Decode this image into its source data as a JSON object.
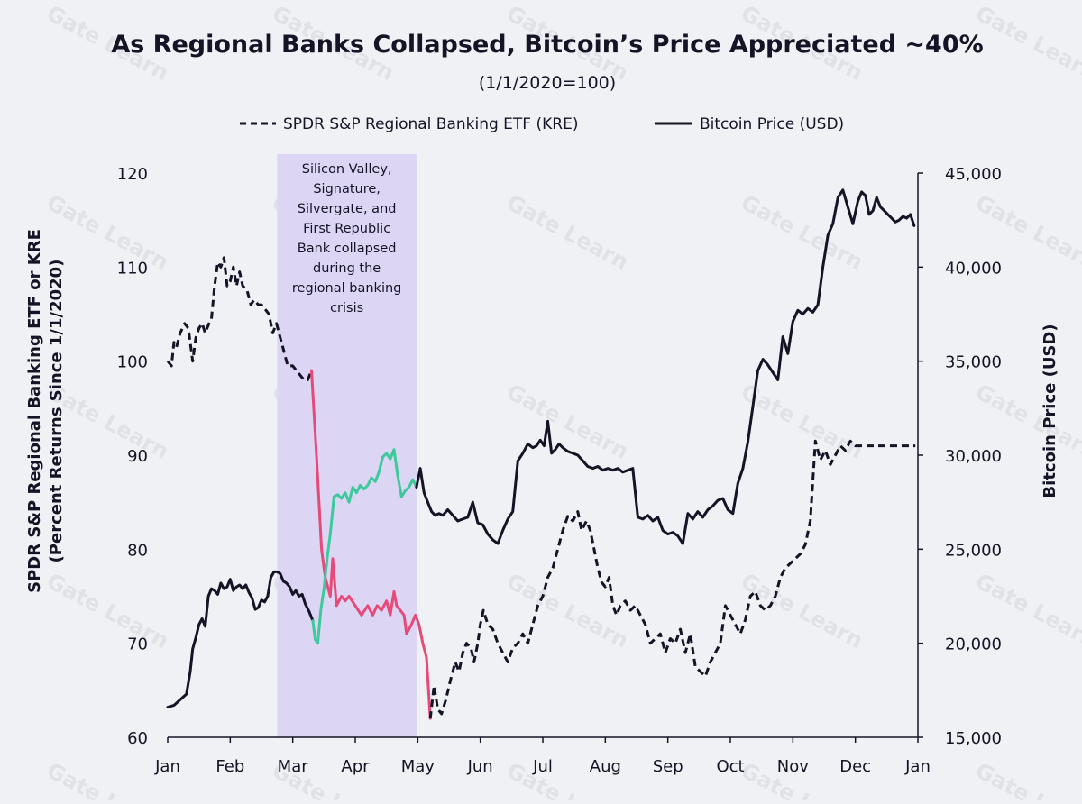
{
  "chart_data": {
    "type": "line",
    "title": "As Regional Banks Collapsed, Bitcoin’s Price Appreciated ~40%",
    "subtitle": "(1/1/2020=100)",
    "watermark": "Gate Learn",
    "legend": [
      {
        "label": "SPDR S&P Regional Banking ETF (KRE)",
        "style": "dashed"
      },
      {
        "label": "Bitcoin Price (USD)",
        "style": "solid"
      }
    ],
    "x_ticks": [
      "Jan",
      "Feb",
      "Mar",
      "Apr",
      "May",
      "Jun",
      "Jul",
      "Aug",
      "Sep",
      "Oct",
      "Nov",
      "Dec",
      "Jan"
    ],
    "y_left": {
      "label_line1": "SPDR S&P Regional Banking ETF or KRE",
      "label_line2": "(Percent Returns Since 1/1/2020)",
      "ticks": [
        "60",
        "70",
        "80",
        "90",
        "100",
        "110",
        "120"
      ],
      "range": [
        60,
        120
      ]
    },
    "y_right": {
      "label": "Bitcoin Price (USD)",
      "ticks": [
        "15,000",
        "20,000",
        "25,000",
        "30,000",
        "35,000",
        "40,000",
        "45,000"
      ],
      "range": [
        15000,
        45000
      ]
    },
    "x_range": [
      0,
      12
    ],
    "highlight": {
      "x_start": 1.75,
      "x_end": 3.98,
      "color": "#dcd6f4",
      "annotation": [
        "Silicon Valley,",
        "Signature,",
        "Silvergate, and",
        "First Republic",
        "Bank collapsed",
        "during the",
        "regional banking",
        "crisis"
      ]
    },
    "series": [
      {
        "name": "SPDR S&P Regional Banking ETF (KRE)",
        "axis": "left",
        "style": "dashed",
        "color": "#141426",
        "x": [
          0.0,
          0.06,
          0.1,
          0.14,
          0.2,
          0.27,
          0.33,
          0.4,
          0.45,
          0.5,
          0.55,
          0.6,
          0.66,
          0.7,
          0.75,
          0.8,
          0.85,
          0.9,
          0.95,
          1.0,
          1.05,
          1.1,
          1.15,
          1.2,
          1.27,
          1.33,
          1.38,
          1.45,
          1.5,
          1.56,
          1.62,
          1.68,
          1.74,
          1.8,
          1.86,
          1.92,
          2.0,
          2.06,
          2.12,
          2.18,
          2.24,
          2.3
        ],
        "values": [
          100,
          99.5,
          102,
          101.5,
          103,
          104,
          103.5,
          100,
          102.5,
          103.5,
          104,
          103,
          104,
          104.5,
          108,
          110.5,
          110,
          111,
          108,
          108.5,
          110,
          108,
          109.5,
          108,
          107.5,
          106,
          106.5,
          106,
          106,
          105.5,
          105,
          103,
          104,
          102.5,
          101,
          99.5,
          99.5,
          99,
          98.5,
          98,
          98,
          99
        ]
      },
      {
        "name": "SPDR S&P Regional Banking ETF (KRE)",
        "axis": "left",
        "style": "solid",
        "color": "#e64a78",
        "x": [
          2.3,
          2.38,
          2.46,
          2.52,
          2.6,
          2.64,
          2.7,
          2.78,
          2.84,
          2.9,
          3.0,
          3.1,
          3.2,
          3.28,
          3.35,
          3.42,
          3.5,
          3.56,
          3.62,
          3.66,
          3.72,
          3.78,
          3.82,
          3.9,
          3.96,
          4.02,
          4.08,
          4.14,
          4.2
        ],
        "values": [
          99,
          90,
          80,
          77,
          75,
          79,
          74,
          75,
          74.5,
          75,
          74,
          73,
          74,
          73,
          74,
          73.5,
          74.5,
          73,
          75.5,
          74,
          73.5,
          73,
          71,
          72,
          73,
          72,
          70,
          68.5,
          62
        ]
      },
      {
        "name": "SPDR S&P Regional Banking ETF (KRE)",
        "axis": "left",
        "style": "dashed",
        "color": "#141426",
        "x": [
          4.2,
          4.26,
          4.32,
          4.38,
          4.45,
          4.52,
          4.6,
          4.66,
          4.72,
          4.78,
          4.85,
          4.9,
          4.96,
          5.0,
          5.05,
          5.12,
          5.2,
          5.28,
          5.36,
          5.44,
          5.52,
          5.6,
          5.68,
          5.76,
          5.84,
          5.92,
          6.0,
          6.08,
          6.16,
          6.24,
          6.32,
          6.4,
          6.48,
          6.56,
          6.62,
          6.7,
          6.76,
          6.82,
          6.88,
          6.94,
          7.0,
          7.06,
          7.12,
          7.18,
          7.24,
          7.32,
          7.4,
          7.48,
          7.56,
          7.64,
          7.72,
          7.8,
          7.88,
          7.96,
          8.04,
          8.12,
          8.2,
          8.28,
          8.36,
          8.44,
          8.52,
          8.6,
          8.68,
          8.76,
          8.84,
          8.92,
          9.0,
          9.08,
          9.16,
          9.24,
          9.32,
          9.4,
          9.48,
          9.56,
          9.64,
          9.72,
          9.8,
          9.88,
          9.96,
          10.04,
          10.12,
          10.2,
          10.28,
          10.36,
          10.44,
          10.52,
          10.6,
          10.68,
          10.76,
          10.84,
          10.92,
          11.0,
          11.08,
          11.16,
          11.24,
          11.32,
          11.4,
          11.48,
          11.56,
          11.64,
          11.72,
          11.8,
          11.88,
          11.96
        ],
        "values": [
          62,
          65.5,
          63,
          62.5,
          64,
          66,
          68,
          67,
          69,
          70,
          69.5,
          68,
          70,
          72,
          73.5,
          72,
          71.5,
          70,
          69,
          68,
          69.5,
          70,
          71,
          70,
          72,
          74,
          75,
          77,
          78,
          80,
          82,
          83.5,
          83,
          84,
          82,
          83,
          82,
          80,
          78,
          76.5,
          76,
          77,
          74,
          73,
          74,
          74.5,
          73.5,
          74,
          73,
          72,
          70,
          70.5,
          71,
          69,
          70.5,
          70,
          71.5,
          69,
          71,
          67.5,
          67,
          66.5,
          68,
          69,
          70,
          74,
          73,
          72,
          71,
          72.5,
          75,
          75.5,
          74,
          73.5,
          74,
          75,
          77,
          78,
          78.5,
          79,
          79.5,
          80.5,
          83,
          91.5,
          89.5,
          90.5,
          89,
          90,
          91,
          90.5,
          91.5,
          91,
          91,
          91,
          91,
          91,
          91,
          91,
          91,
          91,
          91,
          91,
          91,
          91
        ]
      },
      {
        "name": "Bitcoin Price (USD)",
        "axis": "right",
        "style": "solid",
        "color": "#141426",
        "x": [
          0.0,
          0.1,
          0.2,
          0.3,
          0.36,
          0.4,
          0.45,
          0.5,
          0.55,
          0.6,
          0.65,
          0.7,
          0.75,
          0.8,
          0.85,
          0.9,
          0.95,
          1.0,
          1.05,
          1.1,
          1.15,
          1.2,
          1.25,
          1.3,
          1.35,
          1.4,
          1.45,
          1.5,
          1.55,
          1.6,
          1.65,
          1.7,
          1.75,
          1.8,
          1.85,
          1.9,
          1.95,
          2.0,
          2.05,
          2.1,
          2.15,
          2.2,
          2.26,
          2.32
        ],
        "values": [
          16600,
          16700,
          17000,
          17300,
          18500,
          19700,
          20300,
          21000,
          21300,
          20900,
          22500,
          22900,
          22800,
          22600,
          23200,
          22900,
          23000,
          23400,
          22800,
          23000,
          23100,
          22900,
          23100,
          22700,
          22400,
          21800,
          21900,
          22300,
          22200,
          22500,
          23500,
          23800,
          23800,
          23700,
          23300,
          23200,
          23000,
          22600,
          22800,
          22500,
          22600,
          22100,
          21700,
          21200
        ]
      },
      {
        "name": "Bitcoin Price (USD)",
        "axis": "right",
        "style": "solid",
        "color": "#3dc99b",
        "x": [
          2.32,
          2.36,
          2.4,
          2.45,
          2.5,
          2.55,
          2.6,
          2.66,
          2.72,
          2.78,
          2.84,
          2.9,
          2.96,
          3.02,
          3.08,
          3.14,
          3.2,
          3.26,
          3.32,
          3.38,
          3.44,
          3.5,
          3.56,
          3.62,
          3.68,
          3.74,
          3.8,
          3.86,
          3.92,
          3.98
        ],
        "values": [
          21200,
          20200,
          20000,
          21800,
          22900,
          24500,
          25800,
          27800,
          27900,
          27700,
          28000,
          27500,
          28300,
          28000,
          28400,
          28200,
          28400,
          28800,
          28600,
          29100,
          29900,
          30100,
          29800,
          30300,
          28900,
          27800,
          28100,
          28300,
          28700,
          28300
        ]
      },
      {
        "name": "Bitcoin Price (USD)",
        "axis": "right",
        "style": "solid",
        "color": "#141426",
        "x": [
          3.98,
          4.04,
          4.1,
          4.16,
          4.22,
          4.28,
          4.34,
          4.4,
          4.48,
          4.56,
          4.64,
          4.72,
          4.8,
          4.88,
          4.96,
          5.04,
          5.12,
          5.2,
          5.28,
          5.36,
          5.44,
          5.52,
          5.6,
          5.68,
          5.76,
          5.84,
          5.9,
          5.96,
          6.02,
          6.08,
          6.14,
          6.2,
          6.26,
          6.32,
          6.4,
          6.48,
          6.56,
          6.64,
          6.72,
          6.8,
          6.88,
          6.96,
          7.04,
          7.12,
          7.2,
          7.28,
          7.36,
          7.44,
          7.52,
          7.6,
          7.68,
          7.76,
          7.84,
          7.92,
          8.0,
          8.08,
          8.16,
          8.24,
          8.32,
          8.4,
          8.48,
          8.56,
          8.64,
          8.72,
          8.8,
          8.88,
          8.96,
          9.04,
          9.12,
          9.2,
          9.28,
          9.36,
          9.44,
          9.52,
          9.6,
          9.68,
          9.76,
          9.84,
          9.92,
          10.0,
          10.08,
          10.16,
          10.24,
          10.32,
          10.4,
          10.48,
          10.56,
          10.64,
          10.72,
          10.8,
          10.88,
          10.96,
          11.04,
          11.1,
          11.16,
          11.22,
          11.28,
          11.34,
          11.4,
          11.46,
          11.52,
          11.58,
          11.64,
          11.7,
          11.76,
          11.82,
          11.88,
          11.94
        ],
        "values": [
          28300,
          29300,
          28000,
          27500,
          27000,
          26800,
          26900,
          26800,
          27100,
          26800,
          26500,
          26600,
          26700,
          27500,
          26400,
          26300,
          25800,
          25500,
          25300,
          26000,
          26600,
          27000,
          29700,
          30100,
          30600,
          30400,
          30500,
          30800,
          30500,
          31800,
          30100,
          30300,
          30600,
          30400,
          30200,
          30100,
          30000,
          29700,
          29400,
          29300,
          29400,
          29200,
          29300,
          29200,
          29300,
          29100,
          29200,
          29300,
          26700,
          26600,
          26800,
          26500,
          26700,
          26000,
          25800,
          25900,
          25700,
          25300,
          26900,
          26600,
          27000,
          26700,
          27100,
          27300,
          27600,
          27700,
          27100,
          26900,
          28500,
          29300,
          30700,
          32600,
          34500,
          35100,
          34800,
          34400,
          34000,
          36300,
          35400,
          37100,
          37700,
          37500,
          37800,
          37600,
          38000,
          40000,
          41700,
          42300,
          43700,
          44100,
          43200,
          42300,
          43500,
          44000,
          43800,
          42800,
          43000,
          43700,
          43200,
          43000,
          42800,
          42600,
          42400,
          42500,
          42700,
          42600,
          42800,
          42200
        ]
      }
    ]
  }
}
